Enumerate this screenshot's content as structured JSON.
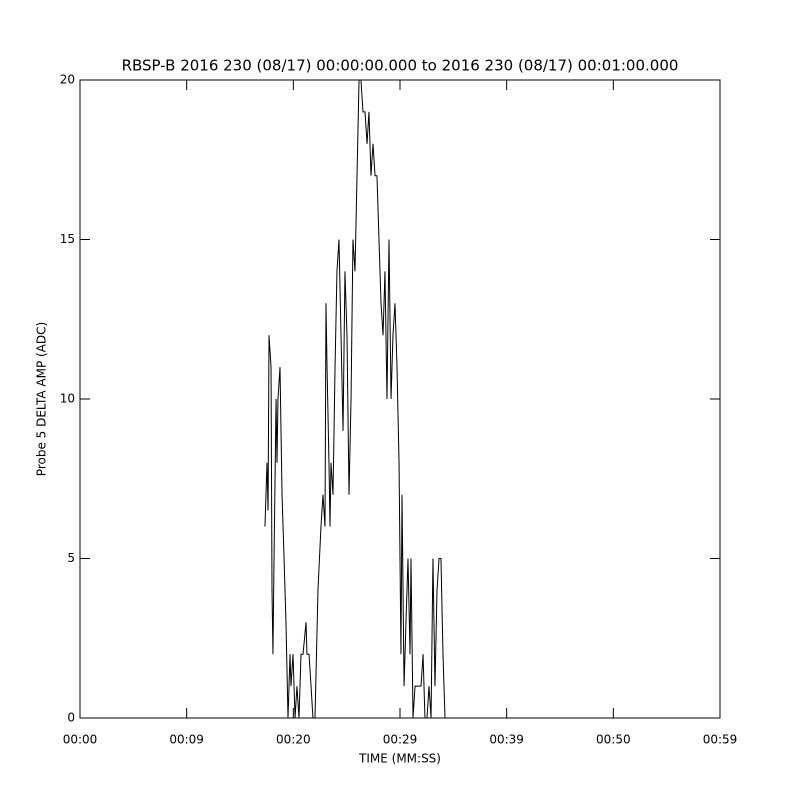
{
  "chart_data": {
    "type": "line",
    "title": "RBSP-B 2016 230 (08/17) 00:00:00.000 to 2016 230 (08/17) 00:01:00.000",
    "xlabel": "TIME (MM:SS)",
    "ylabel": "Probe 5 DELTA AMP (ADC)",
    "xlim": [
      0,
      60
    ],
    "xticks": [
      {
        "value": 0,
        "label": "00:00"
      },
      {
        "value": 10,
        "label": "00:09"
      },
      {
        "value": 20,
        "label": "00:20"
      },
      {
        "value": 30,
        "label": "00:29"
      },
      {
        "value": 40,
        "label": "00:39"
      },
      {
        "value": 50,
        "label": "00:50"
      },
      {
        "value": 60,
        "label": "00:59"
      }
    ],
    "ylim": [
      0,
      20
    ],
    "yticks": [
      0,
      5,
      10,
      15,
      20
    ],
    "series": [
      {
        "color": "#000000",
        "x": [
          17.34,
          17.53,
          17.63,
          17.72,
          17.91,
          18.0,
          18.09,
          18.19,
          18.38,
          18.47,
          18.56,
          18.75,
          18.94,
          19.13,
          19.31,
          19.5,
          19.69,
          19.78,
          19.97,
          20.16,
          20.34,
          20.53,
          20.72,
          20.91,
          21.19,
          21.28,
          21.47,
          21.66,
          21.84,
          22.03,
          22.31,
          22.59,
          22.78,
          22.97,
          23.06,
          23.16,
          23.34,
          23.44,
          23.53,
          23.72,
          23.91,
          24.09,
          24.28,
          24.47,
          24.66,
          24.84,
          25.03,
          25.22,
          25.41,
          25.59,
          25.78,
          25.97,
          26.16,
          26.34,
          26.53,
          26.72,
          26.91,
          27.09,
          27.28,
          27.47,
          27.66,
          27.84,
          28.03,
          28.22,
          28.41,
          28.59,
          28.78,
          28.97,
          29.16,
          29.34,
          29.53,
          29.72,
          29.91,
          30.09,
          30.19,
          30.38,
          30.56,
          30.75,
          30.94,
          31.03,
          31.22,
          31.41,
          31.59,
          31.78,
          31.97,
          32.16,
          32.34,
          32.53,
          32.72,
          32.91,
          33.09,
          33.28,
          33.47,
          33.66,
          33.84,
          34.03,
          34.22
        ],
        "values": [
          6,
          8,
          6.5,
          12,
          11,
          4,
          2,
          5,
          10,
          8,
          10,
          11,
          7,
          5,
          3,
          0,
          2,
          1,
          2,
          0,
          1,
          0,
          2,
          2,
          3,
          2,
          2,
          1,
          0,
          0,
          4,
          6,
          7,
          6,
          13,
          11,
          8,
          6,
          8,
          7,
          11,
          14,
          15,
          12,
          9,
          14,
          12,
          7,
          10,
          15,
          14,
          17,
          20,
          20,
          19,
          19,
          18,
          19,
          17,
          18,
          17,
          17,
          15,
          13,
          12,
          14,
          10,
          15,
          10,
          12,
          13,
          11,
          8,
          2,
          7,
          1,
          3,
          5,
          2,
          5,
          0,
          1,
          1,
          1,
          1,
          2,
          0,
          0,
          1,
          0,
          5,
          1,
          4,
          5,
          5,
          2,
          0
        ]
      }
    ]
  }
}
